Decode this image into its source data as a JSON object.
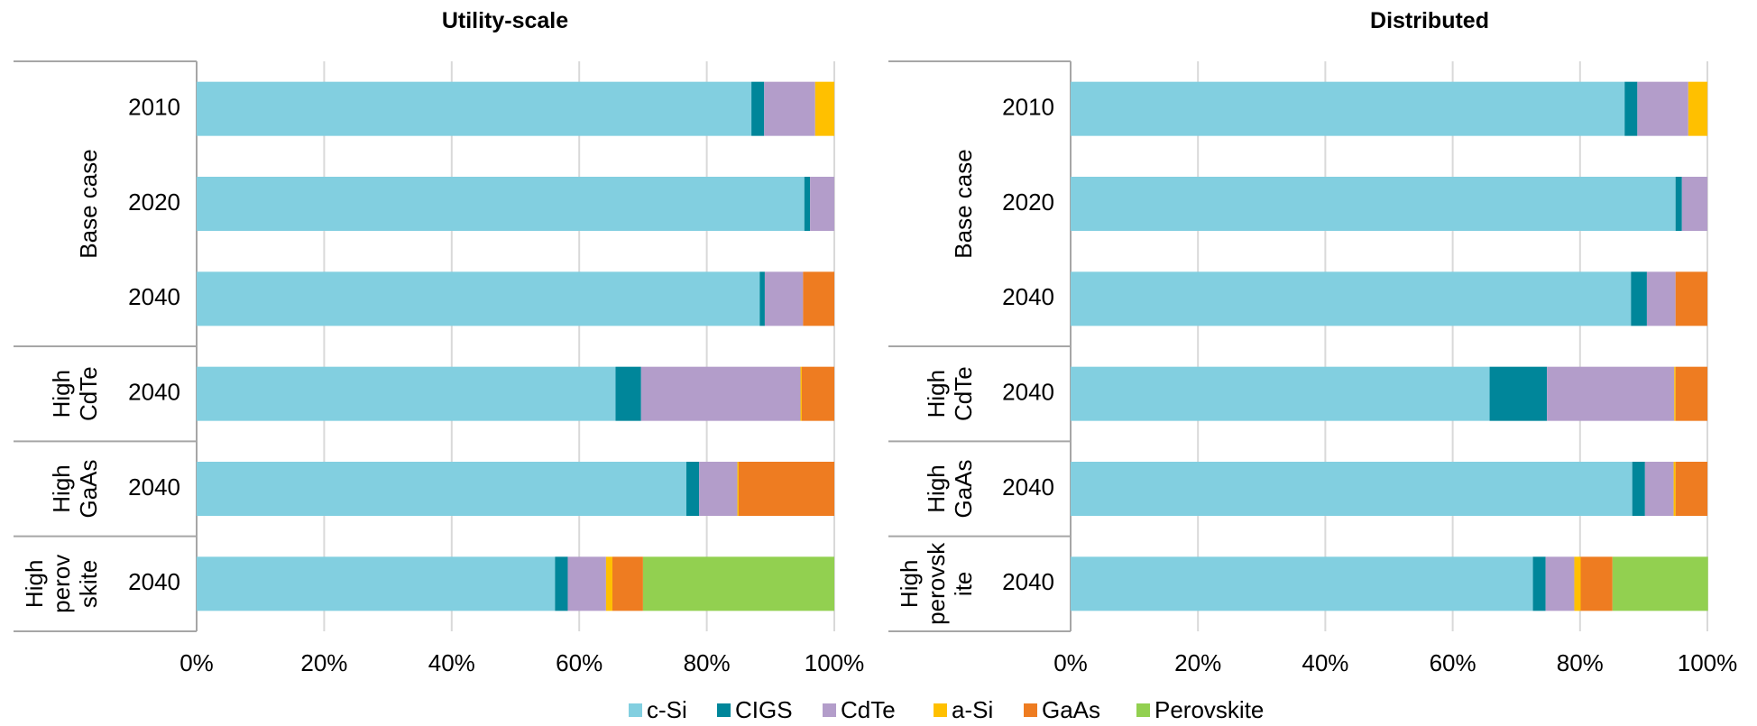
{
  "colors": {
    "c-Si": "#82CFE0",
    "CIGS": "#00869A",
    "CdTe": "#B39DCA",
    "a-Si": "#FFC000",
    "GaAs": "#EE7C21",
    "Perovskite": "#92D050"
  },
  "legend": [
    "c-Si",
    "CIGS",
    "CdTe",
    "a-Si",
    "GaAs",
    "Perovskite"
  ],
  "chart_data": [
    {
      "type": "bar",
      "orientation": "horizontal",
      "stacked": true,
      "title": "Utility-scale",
      "xlim": [
        0,
        100
      ],
      "xticks": [
        "0%",
        "20%",
        "40%",
        "60%",
        "80%",
        "100%"
      ],
      "grid": true,
      "legend_position": "bottom",
      "groups": [
        {
          "label": [
            "Base case"
          ],
          "rows": [
            "2010",
            "2020",
            "2040"
          ]
        },
        {
          "label": [
            "High",
            "CdTe"
          ],
          "rows": [
            "2040"
          ]
        },
        {
          "label": [
            "High",
            "GaAs"
          ],
          "rows": [
            "2040"
          ]
        },
        {
          "label": [
            "High",
            "perov",
            "skite"
          ],
          "rows": [
            "2040"
          ]
        }
      ],
      "series": [
        {
          "name": "c-Si",
          "values": [
            87,
            95.3,
            88.3,
            65.7,
            76.8,
            56.2
          ]
        },
        {
          "name": "CIGS",
          "values": [
            2,
            0.9,
            0.8,
            4,
            2,
            2
          ]
        },
        {
          "name": "CdTe",
          "values": [
            8,
            3.8,
            6,
            25,
            6,
            6
          ]
        },
        {
          "name": "a-Si",
          "values": [
            3,
            0,
            0,
            0.2,
            0.2,
            1
          ]
        },
        {
          "name": "GaAs",
          "values": [
            0,
            0,
            4.9,
            5.1,
            15,
            4.8
          ]
        },
        {
          "name": "Perovskite",
          "values": [
            0,
            0,
            0,
            0,
            0,
            30
          ]
        }
      ]
    },
    {
      "type": "bar",
      "orientation": "horizontal",
      "stacked": true,
      "title": "Distributed",
      "xlim": [
        0,
        100
      ],
      "xticks": [
        "0%",
        "20%",
        "40%",
        "60%",
        "80%",
        "100%"
      ],
      "grid": true,
      "legend_position": "bottom",
      "groups": [
        {
          "label": [
            "Base case"
          ],
          "rows": [
            "2010",
            "2020",
            "2040"
          ]
        },
        {
          "label": [
            "High",
            "CdTe"
          ],
          "rows": [
            "2040"
          ]
        },
        {
          "label": [
            "High",
            "GaAs"
          ],
          "rows": [
            "2040"
          ]
        },
        {
          "label": [
            "High",
            "perovsk",
            "ite"
          ],
          "rows": [
            "2040"
          ]
        }
      ],
      "series": [
        {
          "name": "c-Si",
          "values": [
            87,
            95,
            88,
            65.8,
            88.2,
            72.6
          ]
        },
        {
          "name": "CIGS",
          "values": [
            2,
            1,
            2.5,
            9,
            2,
            2
          ]
        },
        {
          "name": "CdTe",
          "values": [
            8,
            4,
            4.5,
            20,
            4.5,
            4.5
          ]
        },
        {
          "name": "a-Si",
          "values": [
            3,
            0,
            0,
            0.2,
            0.3,
            1
          ]
        },
        {
          "name": "GaAs",
          "values": [
            0,
            0,
            5,
            5,
            5,
            5
          ]
        },
        {
          "name": "Perovskite",
          "values": [
            0,
            0,
            0,
            0,
            0,
            15
          ]
        }
      ]
    }
  ]
}
